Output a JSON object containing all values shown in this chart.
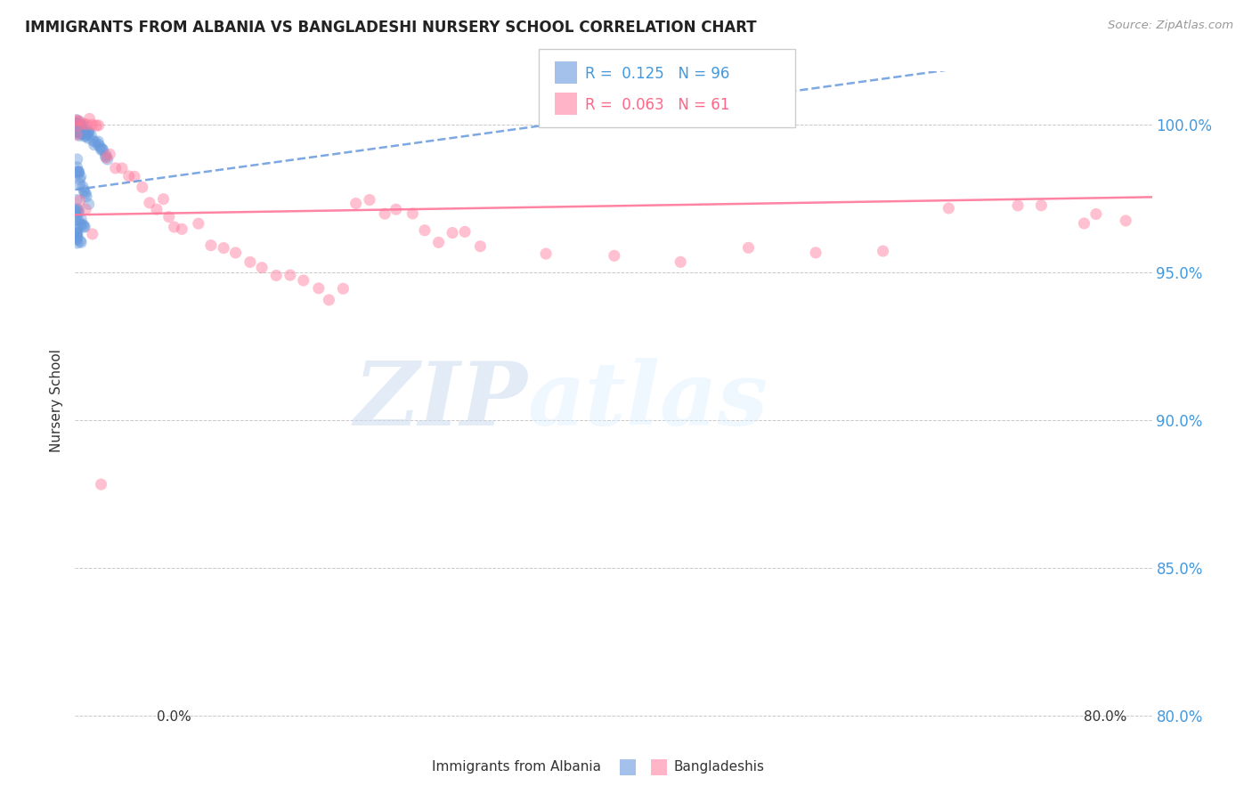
{
  "title": "IMMIGRANTS FROM ALBANIA VS BANGLADESHI NURSERY SCHOOL CORRELATION CHART",
  "source": "Source: ZipAtlas.com",
  "ylabel": "Nursery School",
  "yaxis_labels": [
    "100.0%",
    "95.0%",
    "90.0%",
    "85.0%",
    "80.0%"
  ],
  "yaxis_values": [
    1.0,
    0.95,
    0.9,
    0.85,
    0.8
  ],
  "xlim": [
    0.0,
    0.8
  ],
  "ylim": [
    0.795,
    1.018
  ],
  "color_blue": "#6699DD",
  "color_pink": "#FF7799",
  "watermark_zip": "ZIP",
  "watermark_atlas": "atlas",
  "albania_x": [
    0.001,
    0.001,
    0.001,
    0.001,
    0.001,
    0.001,
    0.001,
    0.001,
    0.001,
    0.001,
    0.002,
    0.002,
    0.002,
    0.002,
    0.002,
    0.002,
    0.002,
    0.002,
    0.003,
    0.003,
    0.003,
    0.003,
    0.003,
    0.004,
    0.004,
    0.004,
    0.004,
    0.005,
    0.005,
    0.005,
    0.006,
    0.006,
    0.006,
    0.007,
    0.007,
    0.008,
    0.008,
    0.009,
    0.009,
    0.01,
    0.01,
    0.011,
    0.012,
    0.013,
    0.014,
    0.015,
    0.016,
    0.017,
    0.018,
    0.019,
    0.02,
    0.021,
    0.022,
    0.023,
    0.024,
    0.001,
    0.001,
    0.001,
    0.002,
    0.002,
    0.003,
    0.003,
    0.004,
    0.004,
    0.005,
    0.006,
    0.007,
    0.008,
    0.009,
    0.01,
    0.001,
    0.001,
    0.002,
    0.002,
    0.003,
    0.004,
    0.005,
    0.006,
    0.007,
    0.008,
    0.001,
    0.002,
    0.003,
    0.004,
    0.001,
    0.002,
    0.003,
    0.001,
    0.002,
    0.001,
    0.001,
    0.001,
    0.001,
    0.001,
    0.001,
    0.001
  ],
  "albania_y": [
    1.0,
    1.0,
    1.0,
    1.0,
    1.0,
    0.999,
    0.999,
    0.999,
    0.998,
    0.998,
    1.0,
    1.0,
    0.999,
    0.999,
    0.998,
    0.998,
    0.997,
    0.997,
    1.0,
    0.999,
    0.999,
    0.998,
    0.997,
    1.0,
    0.999,
    0.998,
    0.997,
    0.999,
    0.998,
    0.997,
    0.999,
    0.998,
    0.997,
    0.998,
    0.997,
    0.998,
    0.997,
    0.997,
    0.996,
    0.997,
    0.996,
    0.996,
    0.995,
    0.995,
    0.994,
    0.994,
    0.993,
    0.993,
    0.992,
    0.992,
    0.991,
    0.99,
    0.99,
    0.989,
    0.988,
    0.988,
    0.987,
    0.986,
    0.985,
    0.984,
    0.983,
    0.982,
    0.981,
    0.98,
    0.979,
    0.978,
    0.977,
    0.976,
    0.975,
    0.974,
    0.973,
    0.972,
    0.971,
    0.97,
    0.969,
    0.968,
    0.967,
    0.966,
    0.965,
    0.964,
    0.963,
    0.962,
    0.961,
    0.96,
    0.971,
    0.97,
    0.969,
    0.968,
    0.967,
    0.966,
    0.965,
    0.964,
    0.963,
    0.962,
    0.961,
    0.96
  ],
  "bangladesh_x": [
    0.001,
    0.002,
    0.003,
    0.005,
    0.007,
    0.009,
    0.011,
    0.013,
    0.015,
    0.018,
    0.021,
    0.025,
    0.03,
    0.035,
    0.04,
    0.045,
    0.05,
    0.055,
    0.06,
    0.065,
    0.07,
    0.075,
    0.08,
    0.09,
    0.1,
    0.11,
    0.12,
    0.13,
    0.14,
    0.15,
    0.16,
    0.17,
    0.18,
    0.19,
    0.2,
    0.21,
    0.22,
    0.23,
    0.24,
    0.25,
    0.26,
    0.27,
    0.28,
    0.29,
    0.3,
    0.35,
    0.4,
    0.45,
    0.5,
    0.55,
    0.6,
    0.65,
    0.7,
    0.75,
    0.78,
    0.72,
    0.76,
    0.003,
    0.006,
    0.012,
    0.02
  ],
  "bangladesh_y": [
    1.0,
    1.0,
    1.0,
    1.0,
    1.0,
    1.0,
    1.0,
    1.0,
    1.0,
    1.0,
    0.99,
    0.988,
    0.986,
    0.984,
    0.982,
    0.98,
    0.978,
    0.976,
    0.974,
    0.972,
    0.97,
    0.968,
    0.966,
    0.964,
    0.962,
    0.96,
    0.958,
    0.956,
    0.954,
    0.952,
    0.95,
    0.948,
    0.946,
    0.944,
    0.942,
    0.976,
    0.974,
    0.972,
    0.97,
    0.968,
    0.966,
    0.964,
    0.962,
    0.96,
    0.958,
    0.956,
    0.954,
    0.952,
    0.96,
    0.958,
    0.956,
    0.972,
    0.97,
    0.968,
    0.966,
    0.972,
    0.97,
    0.972,
    0.97,
    0.965,
    0.877
  ]
}
